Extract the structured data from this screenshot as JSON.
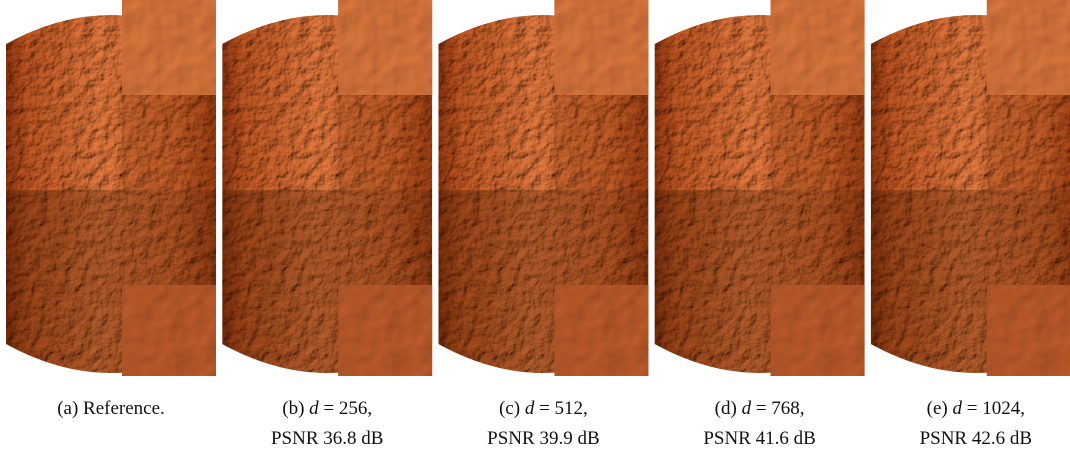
{
  "figure": {
    "panels": [
      {
        "caption": "(a) Reference."
      },
      {
        "label": "(b)",
        "symbol": "d",
        "setting": "= 256,",
        "psnr": "PSNR 36.8 dB"
      },
      {
        "label": "(c)",
        "symbol": "d",
        "setting": "= 512,",
        "psnr": "PSNR 39.9 dB"
      },
      {
        "label": "(d)",
        "symbol": "d",
        "setting": "= 768,",
        "psnr": "PSNR 41.6 dB"
      },
      {
        "label": "(e)",
        "symbol": "d",
        "setting": "= 1024,",
        "psnr": "PSNR 42.6 dB"
      }
    ]
  }
}
